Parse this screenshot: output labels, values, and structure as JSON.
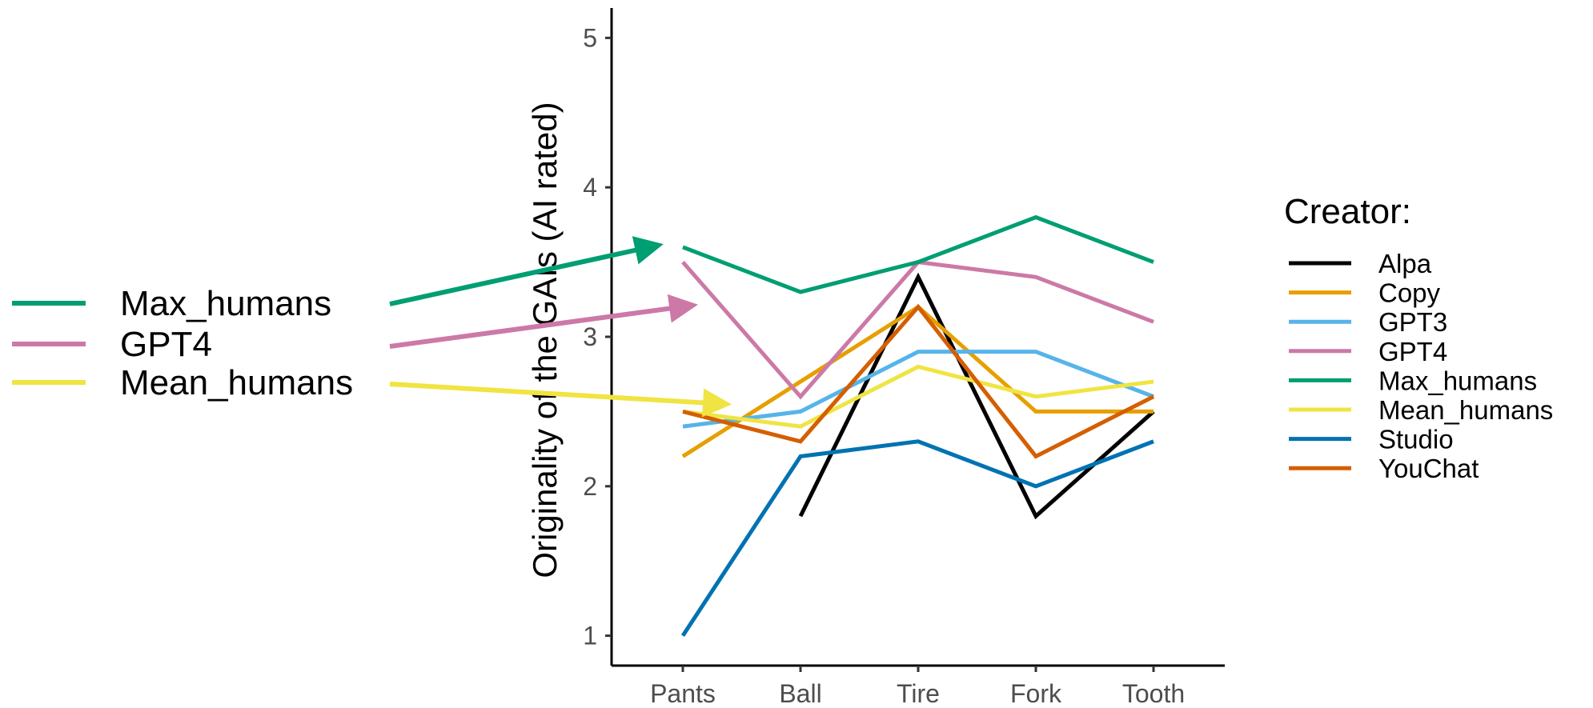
{
  "chart_data": {
    "type": "line",
    "categories": [
      "Pants",
      "Ball",
      "Tire",
      "Fork",
      "Tooth"
    ],
    "ylabel": "Originality of the GAIs (AI rated)",
    "xlabel": "",
    "ylim": [
      0.8,
      5.2
    ],
    "yticks": [
      1,
      2,
      3,
      4,
      5
    ],
    "grid": false,
    "legend": {
      "title": "Creator:",
      "placement": "right"
    },
    "series": [
      {
        "name": "Alpa",
        "color": "#000000",
        "values": [
          null,
          1.8,
          3.4,
          1.8,
          2.5
        ]
      },
      {
        "name": "Copy",
        "color": "#E69F00",
        "values": [
          2.2,
          2.7,
          3.2,
          2.5,
          2.5
        ]
      },
      {
        "name": "GPT3",
        "color": "#56B4E9",
        "values": [
          2.4,
          2.5,
          2.9,
          2.9,
          2.6
        ]
      },
      {
        "name": "GPT4",
        "color": "#CC79A7",
        "values": [
          3.5,
          2.6,
          3.5,
          3.4,
          3.1
        ]
      },
      {
        "name": "Max_humans",
        "color": "#009E73",
        "values": [
          3.6,
          3.3,
          3.5,
          3.8,
          3.5
        ]
      },
      {
        "name": "Mean_humans",
        "color": "#F0E442",
        "values": [
          2.5,
          2.4,
          2.8,
          2.6,
          2.7
        ]
      },
      {
        "name": "Studio",
        "color": "#0072B2",
        "values": [
          1.0,
          2.2,
          2.3,
          2.0,
          2.3
        ]
      },
      {
        "name": "YouChat",
        "color": "#D55E00",
        "values": [
          2.5,
          2.3,
          3.2,
          2.2,
          2.6
        ]
      }
    ],
    "callouts": [
      {
        "label": "Max_humans",
        "color": "#009E73"
      },
      {
        "label": "GPT4",
        "color": "#CC79A7"
      },
      {
        "label": "Mean_humans",
        "color": "#F0E442"
      }
    ]
  }
}
